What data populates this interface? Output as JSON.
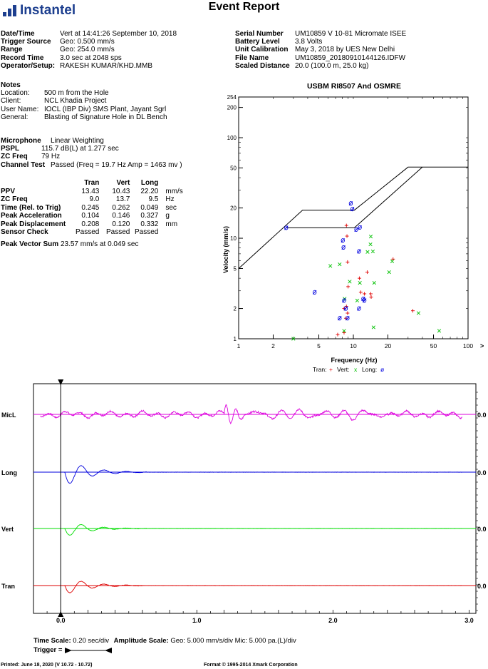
{
  "header": {
    "logo_text": "Instantel",
    "title": "Event Report"
  },
  "info_left": [
    {
      "label": "Date/Time",
      "value": "Vert at 14:41:26 September 10, 2018"
    },
    {
      "label": "Trigger Source",
      "value": "Geo: 0.500 mm/s"
    },
    {
      "label": "Range",
      "value": "Geo: 254.0 mm/s"
    },
    {
      "label": "Record Time",
      "value": "3.0 sec at 2048 sps"
    },
    {
      "label": "Operator/Setup:",
      "value": "RAKESH KUMAR/KHD.MMB"
    }
  ],
  "info_right": [
    {
      "label": "Serial Number",
      "value": "UM10859 V 10-81 Micromate ISEE"
    },
    {
      "label": "Battery Level",
      "value": "3.8 Volts"
    },
    {
      "label": "Unit Calibration",
      "value": "May 3, 2018 by UES New Delhi"
    },
    {
      "label": "File Name",
      "value": "UM10859_20180910144126.IDFW"
    },
    {
      "label": "Scaled Distance",
      "value": "20.0 (100.0 m, 25.0 kg)"
    }
  ],
  "notes": {
    "heading": "Notes",
    "rows": [
      {
        "label": "Location:",
        "value": "500 m from the Hole"
      },
      {
        "label": "Client:",
        "value": "NCL Khadia Project"
      },
      {
        "label": "User Name:",
        "value": "IOCL (IBP Div) SMS Plant, Jayant Sgrl"
      },
      {
        "label": "General:",
        "value": "Blasting of Signature Hole in DL Bench"
      }
    ]
  },
  "microphone": [
    {
      "label": "Microphone",
      "value": "Linear Weighting"
    },
    {
      "label": "PSPL",
      "value": "115.7 dB(L) at 1.277 sec"
    },
    {
      "label": "ZC Freq",
      "value": "79 Hz"
    },
    {
      "label": "Channel Test",
      "value": "Passed (Freq = 19.7 Hz Amp = 1463 mv )"
    }
  ],
  "ppv_table": {
    "headers": [
      "Tran",
      "Vert",
      "Long"
    ],
    "rows": [
      {
        "label": "PPV",
        "values": [
          "13.43",
          "10.43",
          "22.20"
        ],
        "unit": "mm/s"
      },
      {
        "label": "ZC Freq",
        "values": [
          "9.0",
          "13.7",
          "9.5"
        ],
        "unit": "Hz"
      },
      {
        "label": "Time (Rel. to Trig)",
        "values": [
          "0.245",
          "0.262",
          "0.049"
        ],
        "unit": "sec"
      },
      {
        "label": "Peak Acceleration",
        "values": [
          "0.104",
          "0.146",
          "0.327"
        ],
        "unit": "g"
      },
      {
        "label": "Peak Displacement",
        "values": [
          "0.208",
          "0.120",
          "0.332"
        ],
        "unit": "mm"
      },
      {
        "label": "Sensor Check",
        "values": [
          "Passed",
          "Passed",
          "Passed"
        ],
        "unit": ""
      }
    ],
    "pvs_label": "Peak Vector Sum",
    "pvs_value": "23.57 mm/s at 0.049 sec"
  },
  "footer": {
    "time_scale_label": "Time Scale:",
    "time_scale_value": "0.20 sec/div",
    "amp_scale_label": "Amplitude Scale:",
    "amp_scale_value": "Geo: 5.000 mm/s/div Mic: 5.000 pa.(L)/div",
    "trigger_label": "Trigger =",
    "printed": "Printed: June 18, 2020 (V 10.72 - 10.72)",
    "format": "Format © 1995-2014 Xmark Corporation"
  },
  "chart_data": [
    {
      "type": "scatter",
      "title": "USBM RI8507 And OSMRE",
      "xlabel": "Frequency (Hz)",
      "ylabel": "Velocity (mm/s)",
      "x_scale": "log",
      "y_scale": "log",
      "xlim": [
        1,
        100
      ],
      "ylim": [
        1,
        254
      ],
      "x_ticks": [
        "1",
        "2",
        "5",
        "10",
        "20",
        "50",
        "100"
      ],
      "y_ticks": [
        "1",
        "2",
        "5",
        "10",
        "20",
        "50",
        "100",
        "200",
        "254"
      ],
      "x_overflow_marker": ">",
      "legend": {
        "prefix_tran": "Tran:",
        "prefix_vert": "Vert:",
        "prefix_long": "Long:",
        "sym_tran": "+",
        "sym_vert": "x",
        "sym_long": "ø"
      },
      "criteria_line_1": [
        [
          1,
          5
        ],
        [
          3.6,
          19
        ],
        [
          10.2,
          19
        ],
        [
          30,
          51
        ],
        [
          100,
          51
        ]
      ],
      "criteria_line_2": [
        [
          2.6,
          12.7
        ],
        [
          10.2,
          12.7
        ],
        [
          40,
          51
        ]
      ],
      "series": [
        {
          "name": "Tran",
          "color": "#e00000",
          "symbol": "+",
          "points": [
            [
              7.3,
              1.1
            ],
            [
              8.3,
              1.15
            ],
            [
              8.6,
              1.6
            ],
            [
              8.9,
              1.8
            ],
            [
              8.7,
              2.1
            ],
            [
              8.3,
              2.0
            ],
            [
              9.0,
              3.3
            ],
            [
              8.9,
              5.8
            ],
            [
              8.8,
              10.5
            ],
            [
              8.7,
              13.4
            ],
            [
              11.3,
              4.0
            ],
            [
              11.6,
              2.9
            ],
            [
              12.5,
              2.8
            ],
            [
              13.2,
              4.6
            ],
            [
              14.3,
              2.6
            ],
            [
              14.2,
              2.8
            ],
            [
              22.2,
              6.2
            ],
            [
              33.0,
              1.9
            ]
          ]
        },
        {
          "name": "Vert",
          "color": "#00c000",
          "symbol": "x",
          "points": [
            [
              3.0,
              1.0
            ],
            [
              8.3,
              1.2
            ],
            [
              7.6,
              5.5
            ],
            [
              6.3,
              5.3
            ],
            [
              9.3,
              3.7
            ],
            [
              8.4,
              2.5
            ],
            [
              11.4,
              3.6
            ],
            [
              10.8,
              2.4
            ],
            [
              13.3,
              7.3
            ],
            [
              14.2,
              10.4
            ],
            [
              14.1,
              8.7
            ],
            [
              14.8,
              7.4
            ],
            [
              15.2,
              3.6
            ],
            [
              15.0,
              1.3
            ],
            [
              20.5,
              4.6
            ],
            [
              21.8,
              5.9
            ],
            [
              37.0,
              1.8
            ],
            [
              56.0,
              1.2
            ]
          ]
        },
        {
          "name": "Long",
          "color": "#0000e0",
          "symbol": "ø",
          "points": [
            [
              2.6,
              12.7
            ],
            [
              4.6,
              2.9
            ],
            [
              7.6,
              1.6
            ],
            [
              8.3,
              2.4
            ],
            [
              8.6,
              2.0
            ],
            [
              8.2,
              8.1
            ],
            [
              8.1,
              9.5
            ],
            [
              9.5,
              22.2
            ],
            [
              9.8,
              19.5
            ],
            [
              10.6,
              12.2
            ],
            [
              11.4,
              12.8
            ],
            [
              11.2,
              7.4
            ],
            [
              11.2,
              2.0
            ],
            [
              12.2,
              2.5
            ],
            [
              12.5,
              2.4
            ],
            [
              8.9,
              1.6
            ]
          ]
        }
      ]
    },
    {
      "type": "line",
      "title": "",
      "xlabel": "",
      "ylabel": "",
      "x_ticks": [
        "0.0",
        "1.0",
        "2.0",
        "3.0"
      ],
      "xlim": [
        -0.2,
        3.05
      ],
      "trigger_time": 0.0,
      "series": [
        {
          "name": "MicL",
          "color": "#dd00dd",
          "zero_label": "0.0"
        },
        {
          "name": "Long",
          "color": "#0000dd",
          "zero_label": "0.0"
        },
        {
          "name": "Vert",
          "color": "#00dd00",
          "zero_label": "0.0"
        },
        {
          "name": "Tran",
          "color": "#dd0000",
          "zero_label": "0.0"
        }
      ]
    }
  ]
}
